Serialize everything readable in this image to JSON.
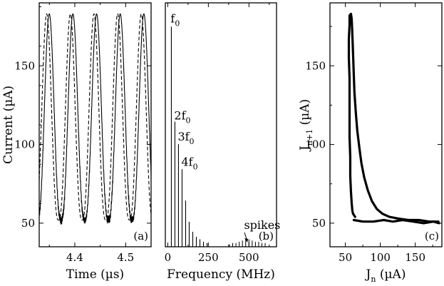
{
  "chart_data": [
    {
      "id": "a",
      "type": "line",
      "panel_label": "(a)",
      "xlabel": "Time (µs)",
      "ylabel": "Current (µA)",
      "xlim": [
        4.33,
        4.55
      ],
      "ylim": [
        35,
        190
      ],
      "xticks": [
        4.4,
        4.5
      ],
      "xtick_labels": [
        "4.4",
        "4.5"
      ],
      "yticks": [
        50,
        100,
        150
      ],
      "ytick_labels": [
        "50",
        "100",
        "150"
      ],
      "series": [
        {
          "name": "solid",
          "style": "solid",
          "period": 0.0465,
          "peak_time": 4.3498,
          "min": 52,
          "max": 183
        },
        {
          "name": "dashed",
          "style": "dashed",
          "period": 0.0465,
          "peak_time": 4.3447,
          "min": 52,
          "max": 183
        }
      ]
    },
    {
      "id": "b",
      "type": "bar",
      "panel_label": "(b)",
      "xlabel": "Frequency (MHz)",
      "ylabel": "",
      "xlim": [
        -15,
        670
      ],
      "ylim": [
        0,
        195
      ],
      "xticks": [
        0,
        250,
        500
      ],
      "xtick_labels": [
        "0",
        "250",
        "500"
      ],
      "harmonics_x": [
        22,
        44,
        66,
        88,
        110,
        132,
        154,
        176,
        198,
        220,
        242
      ],
      "harmonics_y": [
        176,
        100,
        82,
        62,
        37,
        20,
        12,
        8,
        6,
        4,
        3
      ],
      "spikes_x": [
        380,
        400,
        420,
        440,
        460,
        480,
        500,
        520,
        540,
        560,
        580,
        600
      ],
      "spikes_y": [
        2,
        3,
        3,
        4,
        5,
        6,
        6,
        5,
        4,
        4,
        3,
        3
      ],
      "annotations": [
        {
          "base": "f",
          "sub": "0"
        },
        {
          "base": "2f",
          "sub": "0"
        },
        {
          "base": "3f",
          "sub": "0"
        },
        {
          "base": "4f",
          "sub": "0"
        },
        {
          "base": "spikes",
          "sub": ""
        }
      ]
    },
    {
      "id": "c",
      "type": "scatter",
      "panel_label": "(c)",
      "xlabel_base": "J",
      "xlabel_sub": "n",
      "xlabel_unit": " (µA)",
      "ylabel_base": "J",
      "ylabel_sub": "n+1",
      "ylabel_unit": " (µA)",
      "xlim": [
        28,
        188
      ],
      "ylim": [
        35,
        190
      ],
      "xticks": [
        50,
        100,
        150
      ],
      "xtick_labels": [
        "50",
        "100",
        "150"
      ],
      "yticks": [
        50,
        100,
        150
      ],
      "ytick_labels": [
        "50",
        "100",
        "150"
      ],
      "curve_vertical": [
        [
          64,
          54
        ],
        [
          61,
          56
        ],
        [
          60,
          58
        ],
        [
          59,
          63
        ],
        [
          58,
          70
        ],
        [
          57,
          80
        ],
        [
          57,
          92
        ],
        [
          56,
          105
        ],
        [
          56,
          118
        ],
        [
          56,
          130
        ],
        [
          56,
          142
        ],
        [
          55,
          155
        ],
        [
          55,
          167
        ],
        [
          56,
          176
        ],
        [
          56,
          182
        ],
        [
          58,
          183
        ],
        [
          59,
          180
        ],
        [
          60,
          170
        ],
        [
          61,
          158
        ],
        [
          62,
          145
        ],
        [
          63,
          133
        ],
        [
          65,
          120
        ],
        [
          67,
          109
        ],
        [
          70,
          98
        ],
        [
          73,
          88
        ],
        [
          77,
          79
        ],
        [
          82,
          71
        ],
        [
          88,
          64
        ],
        [
          95,
          59
        ],
        [
          103,
          56
        ],
        [
          113,
          54
        ],
        [
          125,
          53
        ],
        [
          140,
          52
        ],
        [
          155,
          52
        ],
        [
          170,
          51
        ],
        [
          183,
          51
        ]
      ],
      "curve_horizontal": [
        [
          62,
          52
        ],
        [
          75,
          51
        ],
        [
          90,
          51
        ],
        [
          105,
          52
        ],
        [
          118,
          51
        ],
        [
          132,
          52
        ],
        [
          147,
          51
        ],
        [
          162,
          50
        ],
        [
          176,
          51
        ],
        [
          184,
          50
        ]
      ]
    }
  ]
}
